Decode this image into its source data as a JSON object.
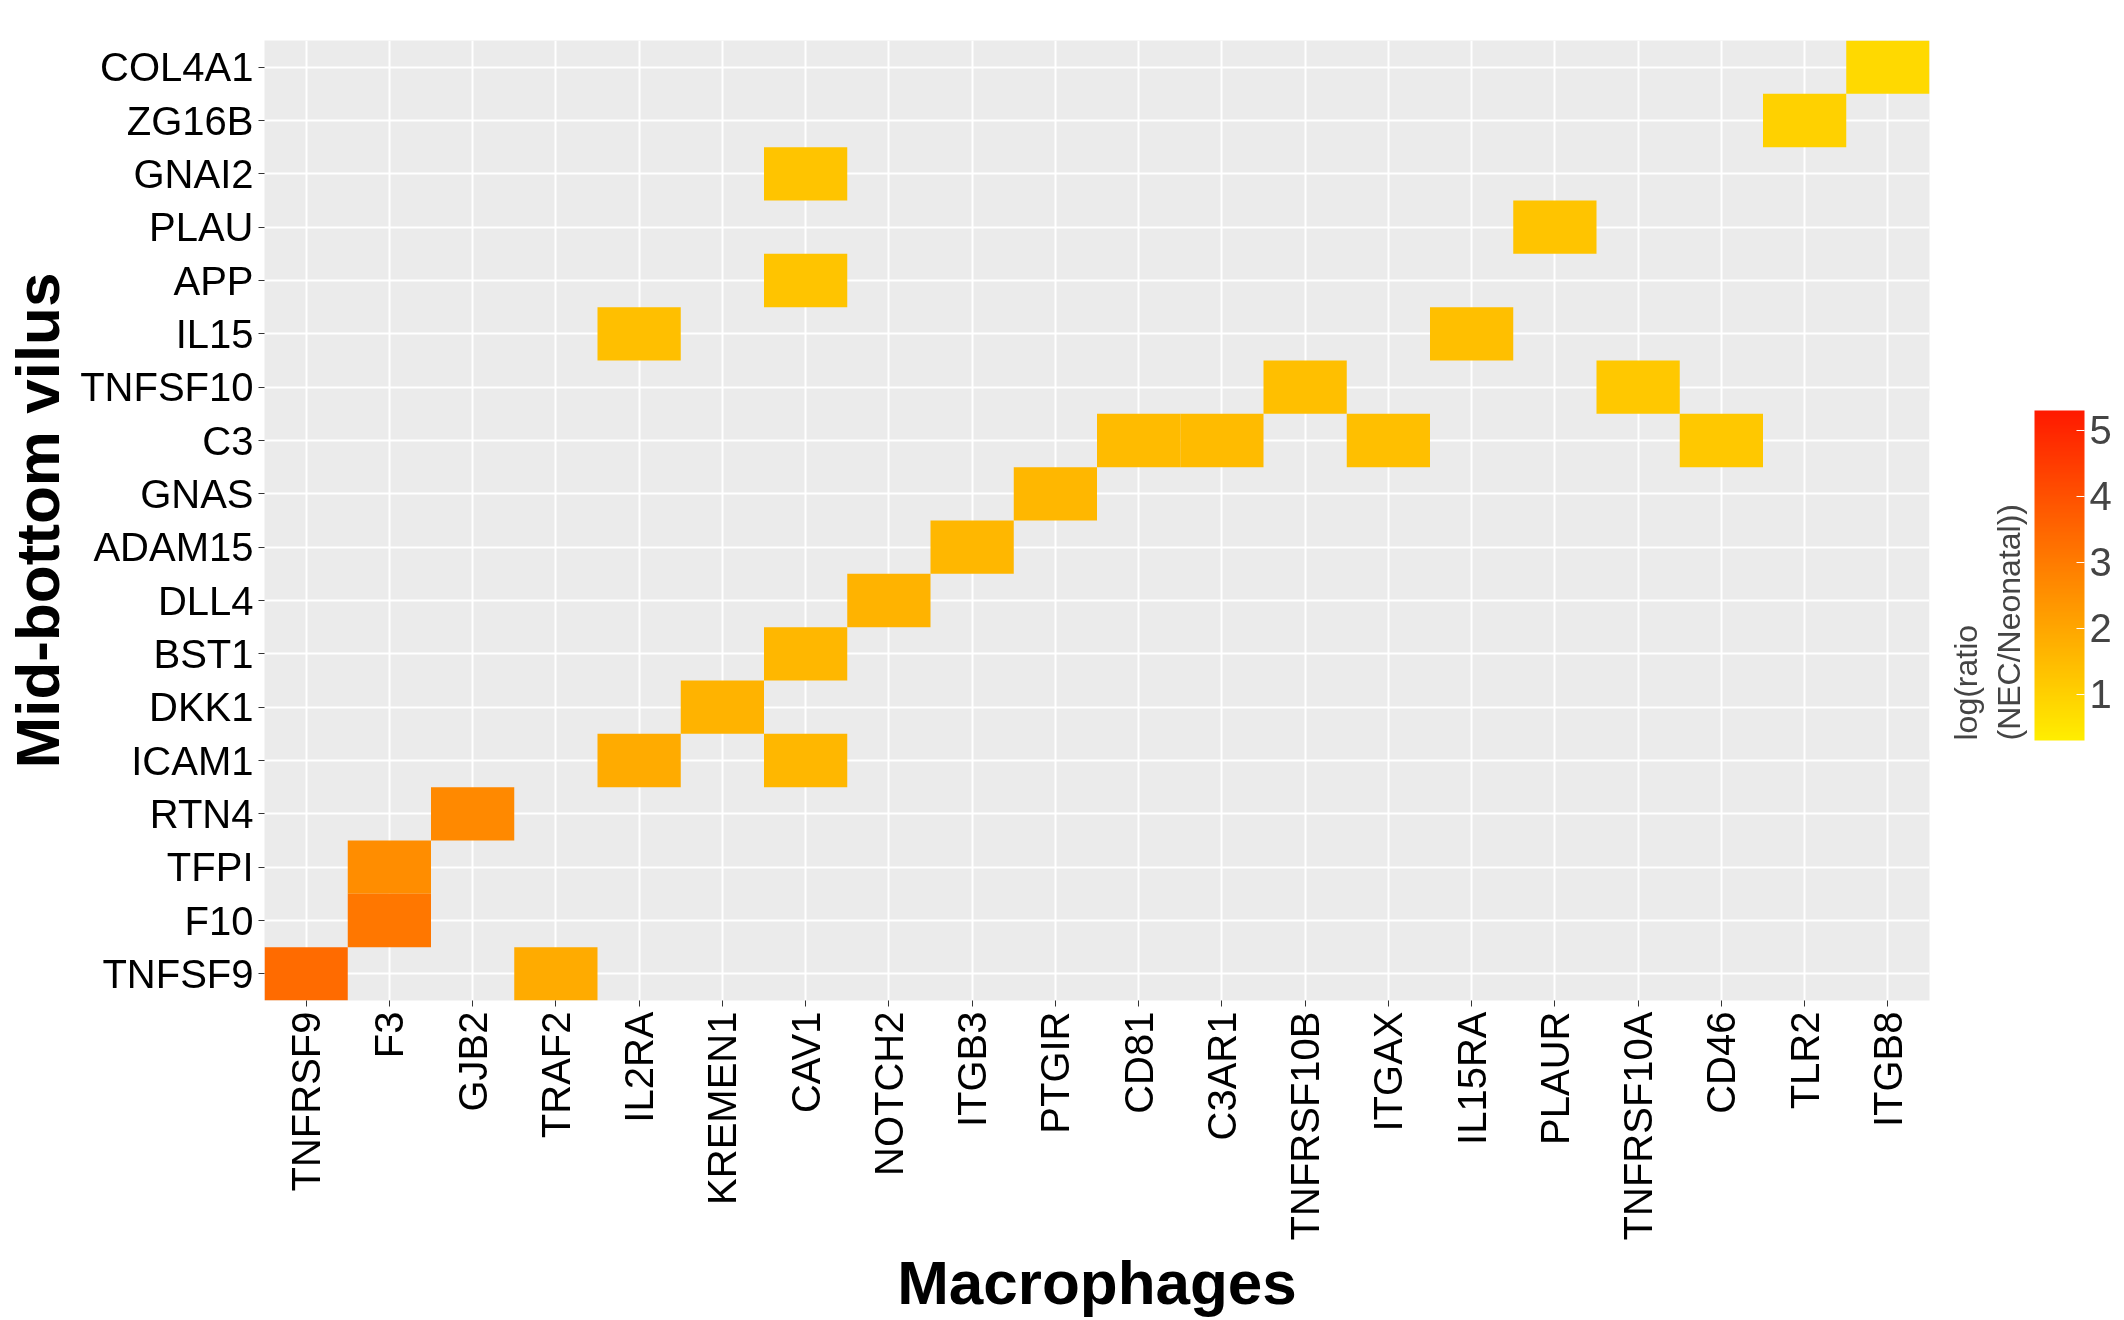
{
  "chart_data": {
    "type": "heatmap",
    "xlabel": "Macrophages",
    "ylabel": "Mid-bottom vilus",
    "clabel": "log(ratio\n(NEC/Neonatal))",
    "categories": [
      "TNFRSF9",
      "F3",
      "GJB2",
      "TRAF2",
      "IL2RA",
      "KREMEN1",
      "CAV1",
      "NOTCH2",
      "ITGB3",
      "PTGIR",
      "CD81",
      "C3AR1",
      "TNFRSF10B",
      "ITGAX",
      "IL15RA",
      "PLAUR",
      "TNFRSF10A",
      "CD46",
      "TLR2",
      "ITGB8"
    ],
    "y_categories": [
      "COL4A1",
      "ZG16B",
      "GNAI2",
      "PLAU",
      "APP",
      "IL15",
      "TNFSF10",
      "C3",
      "GNAS",
      "ADAM15",
      "DLL4",
      "BST1",
      "DKK1",
      "ICAM1",
      "RTN4",
      "TFPI",
      "F10",
      "TNFSF9"
    ],
    "cells": [
      [
        null,
        null,
        null,
        null,
        null,
        null,
        null,
        null,
        null,
        null,
        null,
        null,
        null,
        null,
        null,
        null,
        null,
        null,
        null,
        0.8
      ],
      [
        null,
        null,
        null,
        null,
        null,
        null,
        null,
        null,
        null,
        null,
        null,
        null,
        null,
        null,
        null,
        null,
        null,
        null,
        1.0,
        null
      ],
      [
        null,
        null,
        null,
        null,
        null,
        null,
        1.3,
        null,
        null,
        null,
        null,
        null,
        null,
        null,
        null,
        null,
        null,
        null,
        null,
        null
      ],
      [
        null,
        null,
        null,
        null,
        null,
        null,
        null,
        null,
        null,
        null,
        null,
        null,
        null,
        null,
        null,
        1.3,
        null,
        null,
        null,
        null
      ],
      [
        null,
        null,
        null,
        null,
        null,
        null,
        1.3,
        null,
        null,
        null,
        null,
        null,
        null,
        null,
        null,
        null,
        null,
        null,
        null,
        null
      ],
      [
        null,
        null,
        null,
        null,
        1.4,
        null,
        null,
        null,
        null,
        null,
        null,
        null,
        null,
        null,
        1.4,
        null,
        null,
        null,
        null,
        null
      ],
      [
        null,
        null,
        null,
        null,
        null,
        null,
        null,
        null,
        null,
        null,
        null,
        null,
        1.4,
        null,
        null,
        null,
        1.2,
        null,
        null,
        null
      ],
      [
        null,
        null,
        null,
        null,
        null,
        null,
        null,
        null,
        null,
        null,
        1.5,
        1.5,
        null,
        1.4,
        null,
        null,
        null,
        1.2,
        null,
        null
      ],
      [
        null,
        null,
        null,
        null,
        null,
        null,
        null,
        null,
        null,
        1.6,
        null,
        null,
        null,
        null,
        null,
        null,
        null,
        null,
        null,
        null
      ],
      [
        null,
        null,
        null,
        null,
        null,
        null,
        null,
        null,
        1.6,
        null,
        null,
        null,
        null,
        null,
        null,
        null,
        null,
        null,
        null,
        null
      ],
      [
        null,
        null,
        null,
        null,
        null,
        null,
        null,
        1.7,
        null,
        null,
        null,
        null,
        null,
        null,
        null,
        null,
        null,
        null,
        null,
        null
      ],
      [
        null,
        null,
        null,
        null,
        null,
        null,
        1.6,
        null,
        null,
        null,
        null,
        null,
        null,
        null,
        null,
        null,
        null,
        null,
        null,
        null
      ],
      [
        null,
        null,
        null,
        null,
        null,
        1.7,
        null,
        null,
        null,
        null,
        null,
        null,
        null,
        null,
        null,
        null,
        null,
        null,
        null,
        null
      ],
      [
        null,
        null,
        null,
        null,
        1.9,
        null,
        1.6,
        null,
        null,
        null,
        null,
        null,
        null,
        null,
        null,
        null,
        null,
        null,
        null,
        null
      ],
      [
        null,
        null,
        2.7,
        null,
        null,
        null,
        null,
        null,
        null,
        null,
        null,
        null,
        null,
        null,
        null,
        null,
        null,
        null,
        null,
        null
      ],
      [
        null,
        2.6,
        null,
        null,
        null,
        null,
        null,
        null,
        null,
        null,
        null,
        null,
        null,
        null,
        null,
        null,
        null,
        null,
        null,
        null
      ],
      [
        null,
        3.1,
        null,
        null,
        null,
        null,
        null,
        null,
        null,
        null,
        null,
        null,
        null,
        null,
        null,
        null,
        null,
        null,
        null,
        null
      ],
      [
        3.4,
        null,
        null,
        1.9,
        null,
        null,
        null,
        null,
        null,
        null,
        null,
        null,
        null,
        null,
        null,
        null,
        null,
        null,
        null,
        null
      ]
    ],
    "clim": [
      0.3,
      5.3
    ],
    "cticks": [
      1,
      2,
      3,
      4,
      5
    ],
    "colors": [
      "#ffee00",
      "#ff1a00"
    ],
    "grid": true
  }
}
